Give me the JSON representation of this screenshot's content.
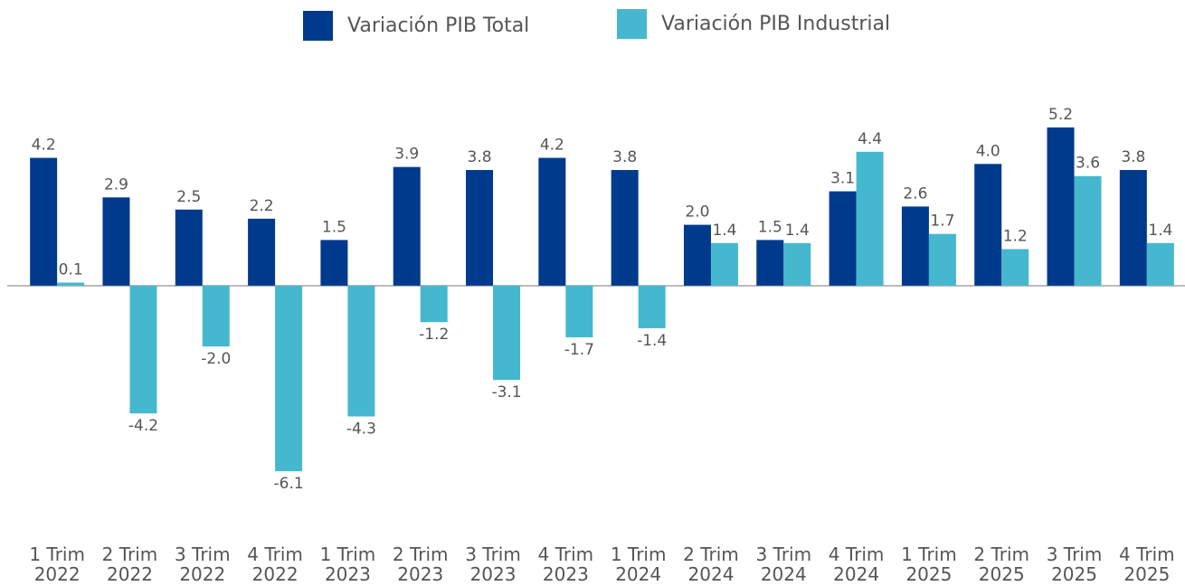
{
  "chart_data": {
    "type": "bar",
    "categories": [
      "1 Trim 2022",
      "2 Trim 2022",
      "3 Trim 2022",
      "4 Trim 2022",
      "1 Trim 2023",
      "2 Trim 2023",
      "3 Trim 2023",
      "4 Trim 2023",
      "1 Trim 2024",
      "2 Trim 2024",
      "3 Trim 2024",
      "4 Trim 2024",
      "1 Trim 2025",
      "2 Trim 2025",
      "3 Trim 2025",
      "4 Trim 2025"
    ],
    "series": [
      {
        "name": "Variación PIB Total",
        "color": "#003a8c",
        "values": [
          4.2,
          2.9,
          2.5,
          2.2,
          1.5,
          3.9,
          3.8,
          4.2,
          3.8,
          2.0,
          1.5,
          3.1,
          2.6,
          4.0,
          5.2,
          3.8
        ],
        "value_labels": [
          "4.2",
          "2.9",
          "2.5",
          "2.2",
          "1.5",
          "3.9",
          "3.8",
          "4.2",
          "3.8",
          "2.0",
          "1.5",
          "3.1",
          "2.6",
          "4.0",
          "5.2",
          "3.8"
        ]
      },
      {
        "name": "Variación PIB Industrial",
        "color": "#45b8cf",
        "values": [
          0.1,
          -4.2,
          -2.0,
          -6.1,
          -4.3,
          -1.2,
          -3.1,
          -1.7,
          -1.4,
          1.4,
          1.4,
          4.4,
          1.7,
          1.2,
          3.6,
          1.4
        ],
        "value_labels": [
          "0.1",
          "-4.2",
          "-2.0",
          "-6.1",
          "-4.3",
          "-1.2",
          "-3.1",
          "-1.7",
          "-1.4",
          "1.4",
          "1.4",
          "4.4",
          "1.7",
          "1.2",
          "3.6",
          "1.4"
        ]
      }
    ],
    "ylim": [
      -8,
      6
    ],
    "legend": "top"
  }
}
